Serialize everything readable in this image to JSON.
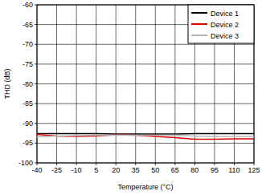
{
  "chart_data": {
    "type": "line",
    "x_label": "Temperature (°C)",
    "y_label": "THD (dB)",
    "x": [
      -40,
      -25,
      -10,
      5,
      20,
      35,
      50,
      65,
      80,
      95,
      110,
      125
    ],
    "series": [
      {
        "name": "Device 1",
        "color": "#000000",
        "values": [
          -92.6,
          -92.6,
          -92.6,
          -92.6,
          -92.7,
          -92.7,
          -92.7,
          -92.7,
          -92.6,
          -92.6,
          -92.6,
          -92.6
        ]
      },
      {
        "name": "Device 2",
        "color": "#e00000",
        "values": [
          -92.8,
          -93.2,
          -93.3,
          -93.2,
          -92.9,
          -93.0,
          -93.3,
          -93.6,
          -94.0,
          -94.0,
          -93.9,
          -93.9
        ]
      },
      {
        "name": "Device 3",
        "color": "#b4b4b4",
        "values": [
          -93.4,
          -93.2,
          -93.1,
          -93.0,
          -93.0,
          -93.0,
          -93.0,
          -93.0,
          -93.2,
          -93.3,
          -93.3,
          -93.3
        ]
      }
    ],
    "xlim": [
      -40,
      125
    ],
    "xticks": [
      -40,
      -25,
      -10,
      5,
      20,
      35,
      50,
      65,
      80,
      95,
      110,
      125
    ],
    "ylim": [
      -100,
      -60
    ],
    "yticks": [
      -100,
      -95,
      -90,
      -85,
      -80,
      -75,
      -70,
      -65,
      -60
    ],
    "grid": true,
    "legend": "top-right"
  }
}
